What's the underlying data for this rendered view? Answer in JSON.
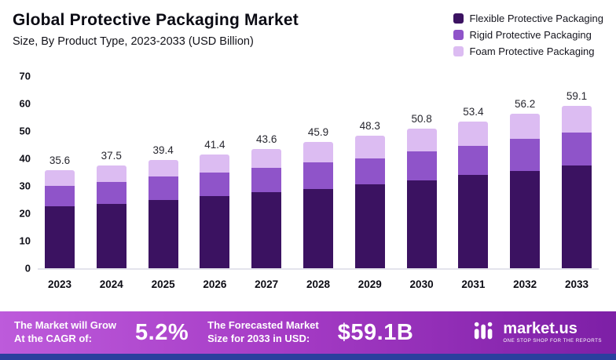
{
  "header": {
    "title": "Global Protective Packaging Market",
    "subtitle": "Size, By Product Type, 2023-2033 (USD Billion)"
  },
  "legend": [
    {
      "label": "Flexible Protective Packaging",
      "color": "#3b1261"
    },
    {
      "label": "Rigid Protective Packaging",
      "color": "#8f54c9"
    },
    {
      "label": "Foam Protective Packaging",
      "color": "#dcbcf2"
    }
  ],
  "chart_data": {
    "type": "bar",
    "stacked": true,
    "title": "Global Protective Packaging Market",
    "subtitle": "Size, By Product Type, 2023-2033 (USD Billion)",
    "unit": "USD Billion",
    "categories": [
      "2023",
      "2024",
      "2025",
      "2026",
      "2027",
      "2028",
      "2029",
      "2030",
      "2031",
      "2032",
      "2033"
    ],
    "series": [
      {
        "name": "Flexible Protective Packaging",
        "color": "#3b1261",
        "values": [
          22.5,
          23.5,
          25.0,
          26.2,
          27.8,
          29.0,
          30.5,
          32.0,
          34.0,
          35.5,
          37.5
        ]
      },
      {
        "name": "Rigid Protective Packaging",
        "color": "#8f54c9",
        "values": [
          7.5,
          8.0,
          8.5,
          8.6,
          8.7,
          9.5,
          9.5,
          10.5,
          10.5,
          11.5,
          12.0
        ]
      },
      {
        "name": "Foam Protective Packaging",
        "color": "#dcbcf2",
        "values": [
          5.6,
          6.0,
          5.9,
          6.6,
          7.1,
          7.4,
          8.3,
          8.3,
          8.9,
          9.2,
          9.6
        ]
      }
    ],
    "totals": [
      "35.6",
      "37.5",
      "39.4",
      "41.4",
      "43.6",
      "45.9",
      "48.3",
      "50.8",
      "53.4",
      "56.2",
      "59.1"
    ],
    "ylim": [
      0,
      70
    ],
    "yticks": [
      70,
      60,
      50,
      40,
      30,
      20,
      10,
      0
    ],
    "grid": false,
    "legend_position": "top-right"
  },
  "footer": {
    "cagr_label_line1": "The Market will Grow",
    "cagr_label_line2": "At the CAGR of:",
    "cagr_value": "5.2%",
    "forecast_label_line1": "The Forecasted Market",
    "forecast_label_line2": "Size for 2033 in USD:",
    "forecast_value": "$59.1B",
    "brand": "market.us",
    "brand_tagline": "One Stop Shop For The Reports"
  }
}
